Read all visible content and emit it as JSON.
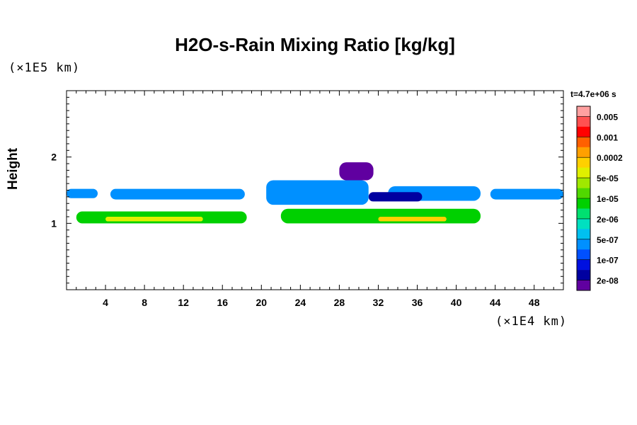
{
  "chart_data": {
    "type": "heatmap",
    "title": "H2O-s-Rain Mixing Ratio [kg/kg]",
    "xlabel": "",
    "ylabel": "Height",
    "x_unit": "(×1E4 km)",
    "y_unit": "(×1E5 km)",
    "time_label": "t=4.7e+06 s",
    "xlim": [
      0,
      51
    ],
    "ylim": [
      0,
      3
    ],
    "x_ticks": [
      4,
      8,
      12,
      16,
      20,
      24,
      28,
      32,
      36,
      40,
      44,
      48
    ],
    "y_ticks": [
      1,
      2
    ],
    "colorbar": {
      "levels": [
        "0.005",
        "0.001",
        "0.0002",
        "5e-05",
        "1e-05",
        "2e-06",
        "5e-07",
        "1e-07",
        "2e-08"
      ],
      "colors": [
        "#ffa0a0",
        "#ff5050",
        "#ff0000",
        "#ff6000",
        "#ffa000",
        "#ffd000",
        "#e0f000",
        "#a0e800",
        "#50d800",
        "#00d000",
        "#00e070",
        "#00e0c0",
        "#00c0f0",
        "#0090ff",
        "#0050ff",
        "#0010e0",
        "#0000a0",
        "#6000a0"
      ]
    },
    "regions": [
      {
        "name": "upper-band-left",
        "level_index": 13,
        "x": [
          0,
          3.2
        ],
        "y": [
          1.38,
          1.52
        ]
      },
      {
        "name": "upper-band-left2",
        "level_index": 13,
        "x": [
          4.5,
          18.3
        ],
        "y": [
          1.36,
          1.52
        ]
      },
      {
        "name": "upper-band-right",
        "level_index": 13,
        "x": [
          43.5,
          51
        ],
        "y": [
          1.36,
          1.52
        ]
      },
      {
        "name": "upper-band-right2",
        "level_index": 13,
        "x": [
          33,
          42.5
        ],
        "y": [
          1.34,
          1.56
        ]
      },
      {
        "name": "deep-blue-core",
        "level_index": 16,
        "x": [
          31,
          36.5
        ],
        "y": [
          1.33,
          1.47
        ]
      },
      {
        "name": "violet-plume",
        "level_index": 17,
        "x": [
          28,
          31.5
        ],
        "y": [
          1.65,
          1.92
        ]
      },
      {
        "name": "middle-plume",
        "level_index": 13,
        "x": [
          20.5,
          31
        ],
        "y": [
          1.28,
          1.65
        ]
      },
      {
        "name": "lower-band-left",
        "level_index": 9,
        "x": [
          1,
          18.5
        ],
        "y": [
          1.0,
          1.18
        ]
      },
      {
        "name": "lower-band-right",
        "level_index": 9,
        "x": [
          22,
          42.5
        ],
        "y": [
          1.0,
          1.22
        ]
      },
      {
        "name": "lower-core-left",
        "level_index": 6,
        "x": [
          4,
          14
        ],
        "y": [
          1.03,
          1.1
        ]
      },
      {
        "name": "lower-core-right",
        "level_index": 5,
        "x": [
          32,
          39
        ],
        "y": [
          1.03,
          1.1
        ]
      }
    ]
  }
}
